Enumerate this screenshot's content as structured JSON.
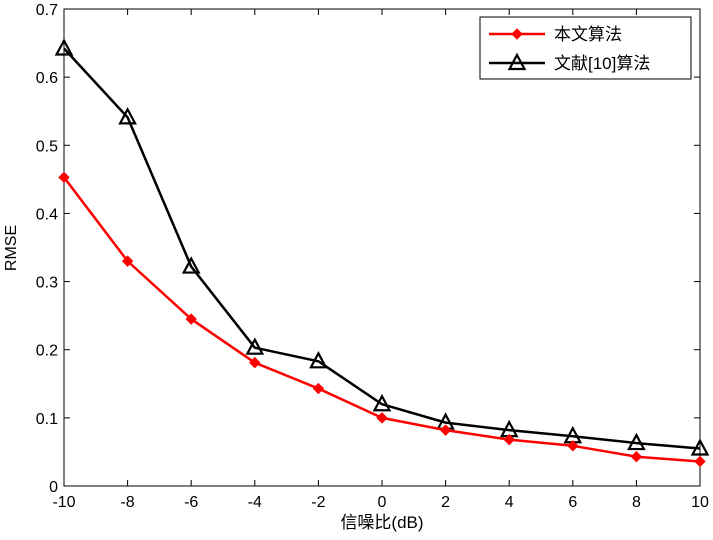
{
  "chart_data": {
    "type": "line",
    "title": "",
    "xlabel": "信噪比(dB)",
    "ylabel": "RMSE",
    "xlim": [
      -10,
      10
    ],
    "ylim": [
      0,
      0.7
    ],
    "x_ticks": [
      "-10",
      "-8",
      "-6",
      "-4",
      "-2",
      "0",
      "2",
      "4",
      "6",
      "8",
      "10"
    ],
    "y_ticks": [
      "0",
      "0.1",
      "0.2",
      "0.3",
      "0.4",
      "0.5",
      "0.6",
      "0.7"
    ],
    "grid": false,
    "legend_position": "top-right",
    "x": [
      -10,
      -8,
      -6,
      -4,
      -2,
      0,
      2,
      4,
      6,
      8,
      10
    ],
    "series": [
      {
        "name": "本文算法",
        "color": "#ff0000",
        "marker": "diamond",
        "values": [
          0.453,
          0.33,
          0.245,
          0.181,
          0.143,
          0.1,
          0.082,
          0.068,
          0.059,
          0.043,
          0.036
        ]
      },
      {
        "name": "文献[10]算法",
        "color": "#000000",
        "marker": "triangle",
        "values": [
          0.642,
          0.541,
          0.322,
          0.203,
          0.183,
          0.12,
          0.093,
          0.082,
          0.073,
          0.063,
          0.055
        ]
      }
    ]
  }
}
